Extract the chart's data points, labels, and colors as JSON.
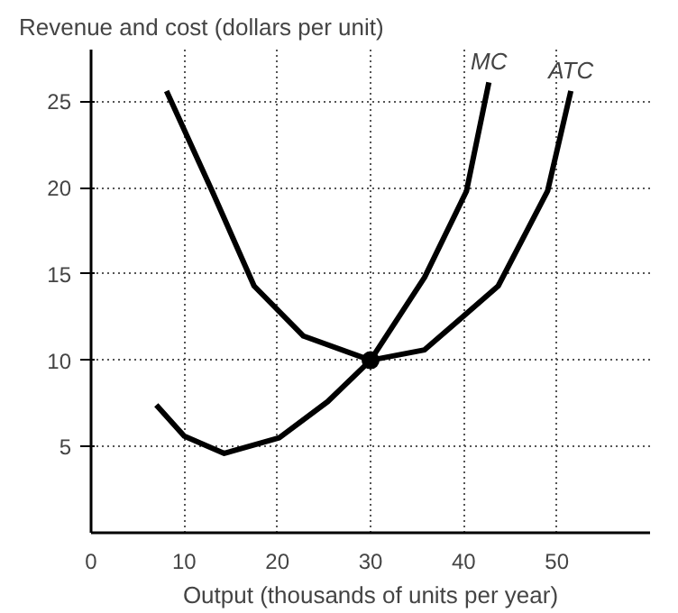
{
  "chart_data": {
    "type": "line",
    "ylabel": "Revenue and cost (dollars per unit)",
    "xlabel": "Output (thousands of units per year)",
    "xlim": [
      0,
      60
    ],
    "ylim": [
      0,
      28
    ],
    "xticks": [
      0,
      10,
      20,
      30,
      40,
      50
    ],
    "yticks": [
      5,
      10,
      15,
      20,
      25
    ],
    "grid": true,
    "line_style": "solid",
    "series": [
      {
        "name": "MC",
        "color": "#000000",
        "x": [
          7,
          10,
          14.3,
          20.2,
          25.4,
          30,
          35.8,
          40.3,
          42.7
        ],
        "values": [
          7.4,
          5.6,
          4.6,
          5.5,
          7.6,
          10,
          14.8,
          19.8,
          26.1
        ]
      },
      {
        "name": "ATC",
        "color": "#000000",
        "x": [
          8.1,
          13,
          17.5,
          22.8,
          30,
          35.8,
          43.7,
          49,
          51.5
        ],
        "values": [
          25.6,
          19.8,
          14.3,
          11.4,
          10,
          10.6,
          14.3,
          19.8,
          25.6
        ]
      },
      {
        "type": "scatter",
        "marker": "circle",
        "color": "#000000",
        "x": [
          30
        ],
        "values": [
          10
        ]
      }
    ]
  }
}
